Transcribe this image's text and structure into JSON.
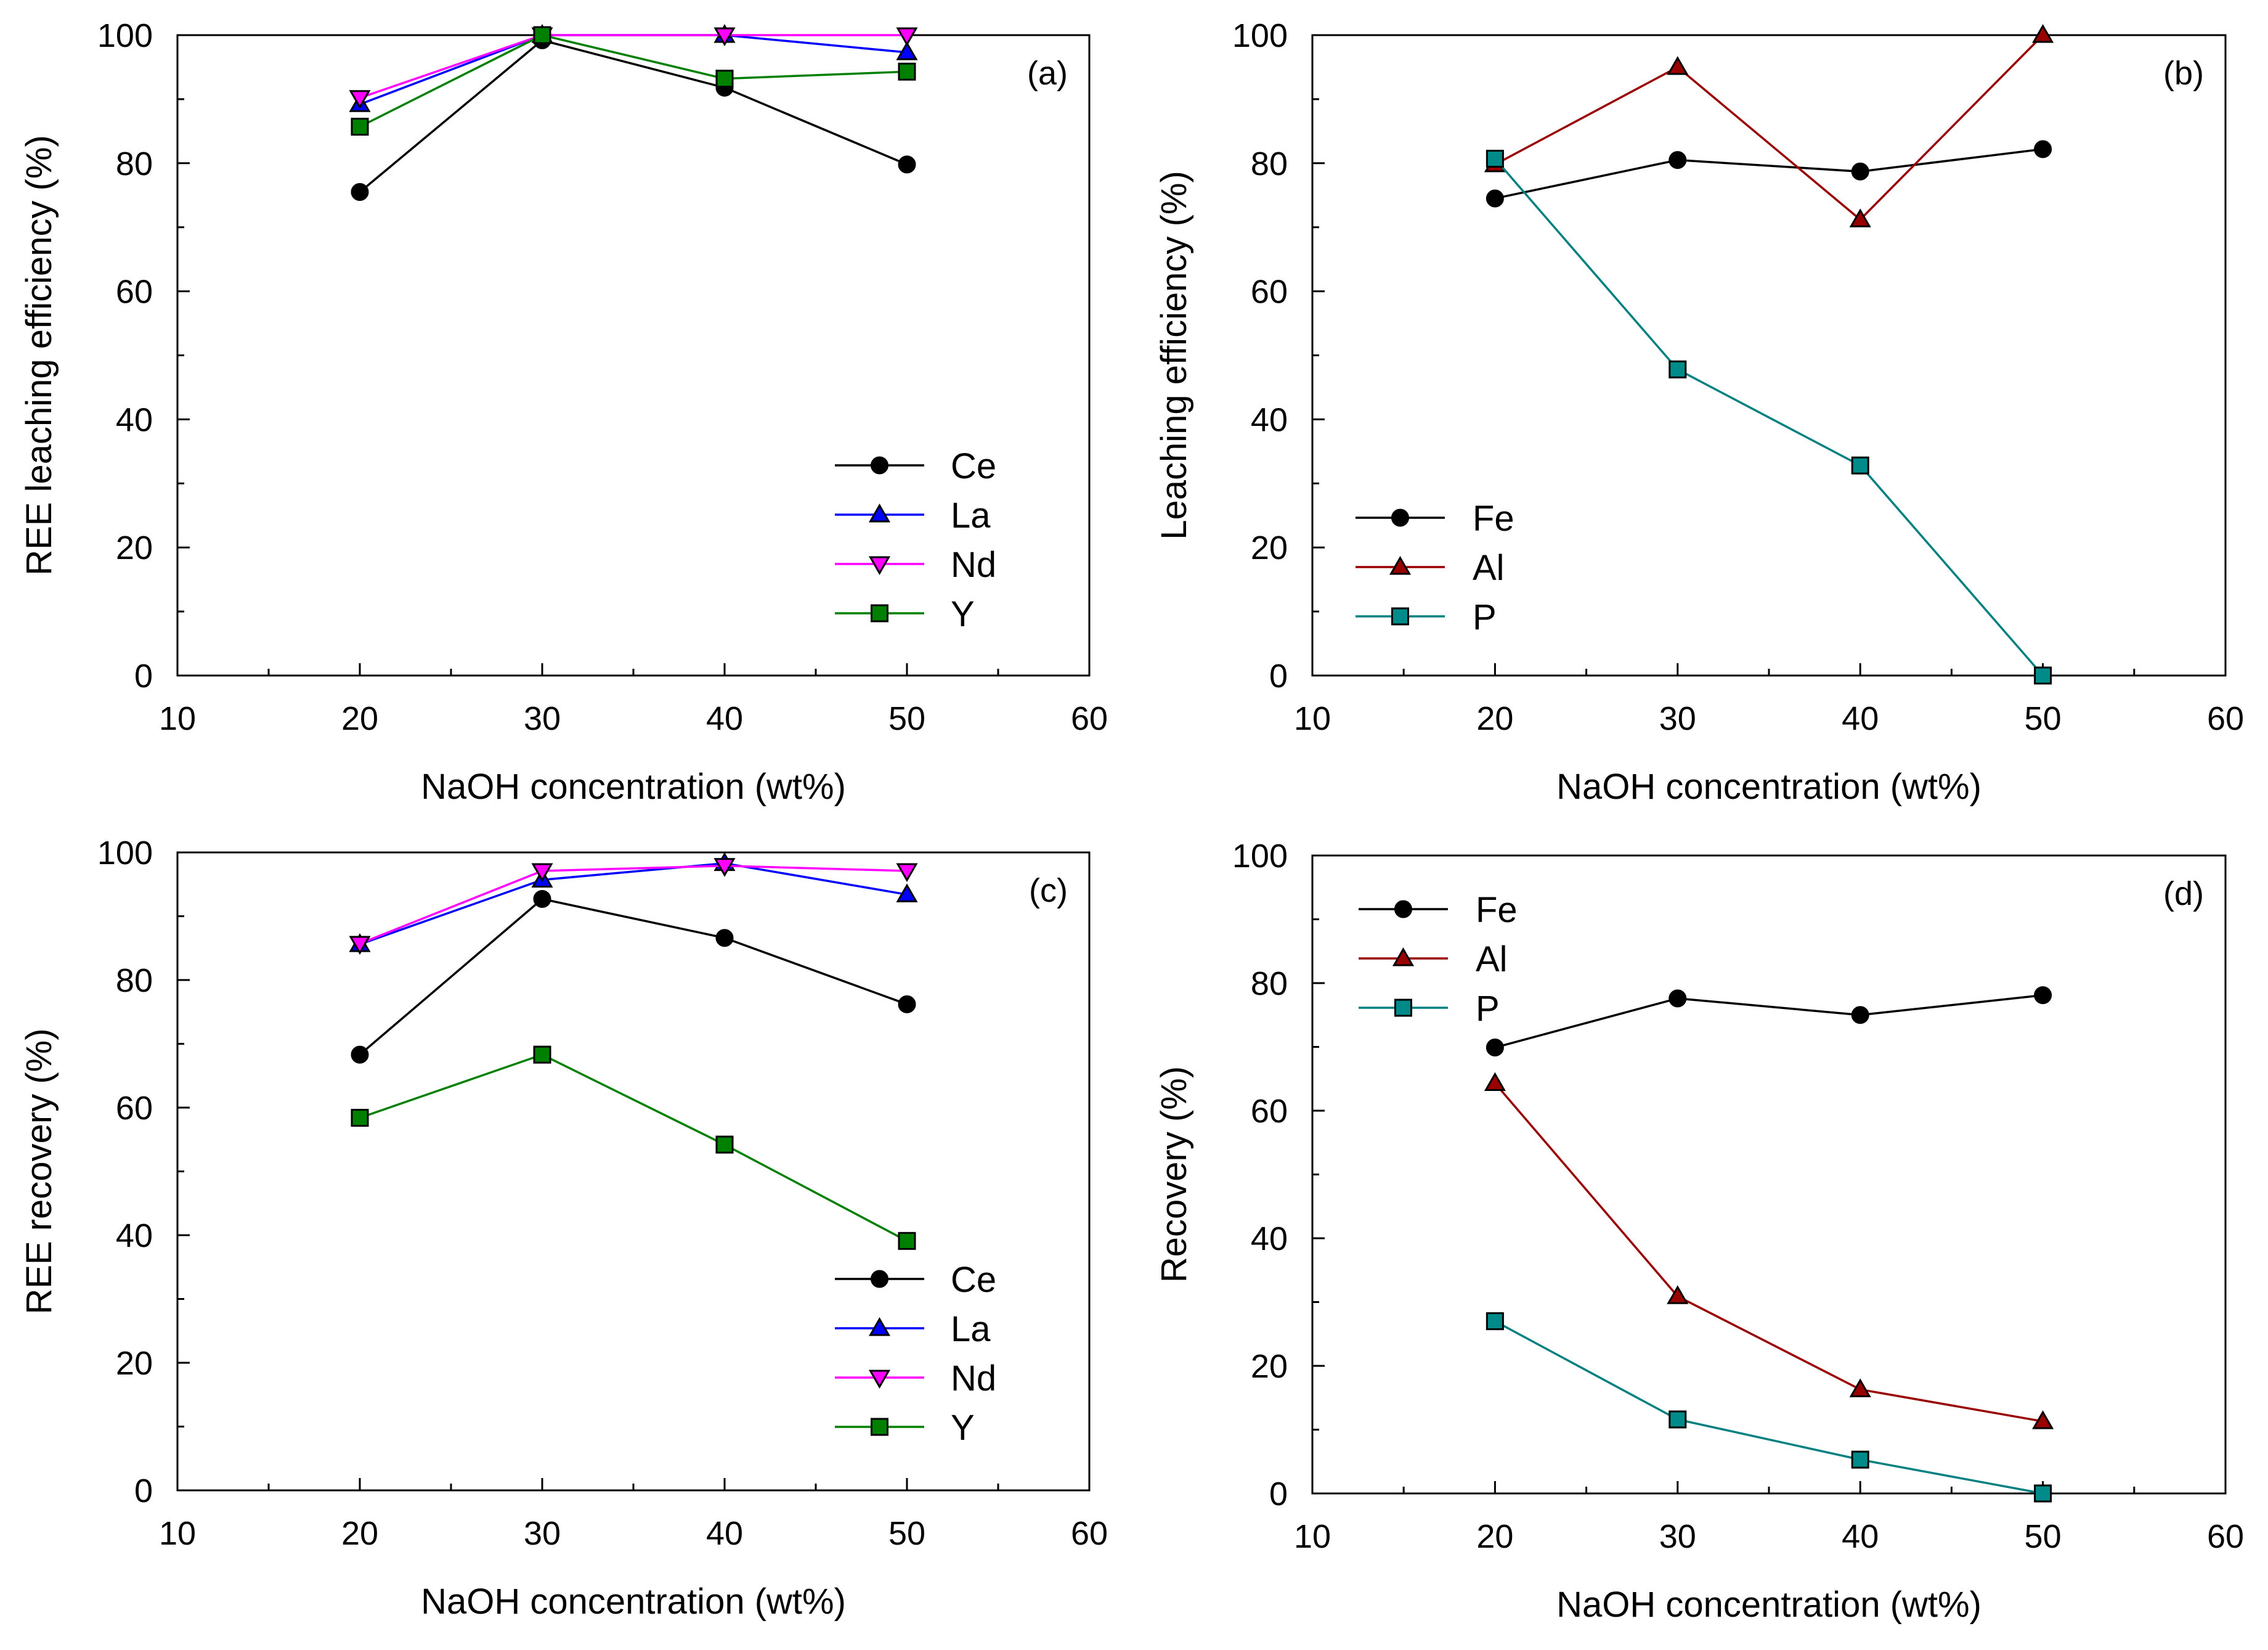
{
  "colors": {
    "Ce": "#000000",
    "La": "#0000ff",
    "Nd": "#ff00ff",
    "Y": "#008000",
    "Fe": "#000000",
    "Al": "#990000",
    "P": "#008080",
    "marker_Ce": "#000000",
    "marker_La": "#0000ff",
    "marker_Nd": "#ff00ff",
    "marker_Y": "#008000",
    "marker_Fe": "#000000",
    "marker_Al": "#990000",
    "marker_P": "#008b8b"
  },
  "chart_data": [
    {
      "id": "a",
      "type": "line",
      "panel_label": "(a)",
      "xlabel": "NaOH concentration (wt%)",
      "ylabel": "REE leaching efficiency (%)",
      "xlim": [
        10,
        60
      ],
      "ylim": [
        0,
        100
      ],
      "xticks": [
        10,
        20,
        30,
        40,
        50,
        60
      ],
      "yticks": [
        0,
        20,
        40,
        60,
        80,
        100
      ],
      "legend_position": "bottom-right",
      "x": [
        20,
        30,
        40,
        50
      ],
      "series": [
        {
          "name": "Ce",
          "marker": "circle",
          "values": [
            75.5,
            99.2,
            91.8,
            79.8
          ]
        },
        {
          "name": "La",
          "marker": "triangle-up",
          "values": [
            89.2,
            100,
            100,
            97.3
          ]
        },
        {
          "name": "Nd",
          "marker": "triangle-down",
          "values": [
            90.2,
            100,
            100,
            100
          ]
        },
        {
          "name": "Y",
          "marker": "square",
          "values": [
            85.7,
            100,
            93.2,
            94.3
          ]
        }
      ]
    },
    {
      "id": "b",
      "type": "line",
      "panel_label": "(b)",
      "xlabel": "NaOH concentration (wt%)",
      "ylabel": "Leaching efficiency (%)",
      "xlim": [
        10,
        60
      ],
      "ylim": [
        0,
        100
      ],
      "xticks": [
        10,
        20,
        30,
        40,
        50,
        60
      ],
      "yticks": [
        0,
        20,
        40,
        60,
        80,
        100
      ],
      "legend_position": "bottom-left",
      "x": [
        20,
        30,
        40,
        50
      ],
      "series": [
        {
          "name": "Fe",
          "marker": "circle",
          "values": [
            74.5,
            80.5,
            78.7,
            82.2
          ]
        },
        {
          "name": "Al",
          "marker": "triangle-up",
          "values": [
            79.8,
            95,
            71.2,
            100
          ]
        },
        {
          "name": "P",
          "marker": "square",
          "values": [
            80.7,
            47.8,
            32.8,
            0
          ]
        }
      ]
    },
    {
      "id": "c",
      "type": "line",
      "panel_label": "(c)",
      "xlabel": "NaOH concentration (wt%)",
      "ylabel": "REE recovery (%)",
      "xlim": [
        10,
        60
      ],
      "ylim": [
        0,
        100
      ],
      "xticks": [
        10,
        20,
        30,
        40,
        50,
        60
      ],
      "yticks": [
        0,
        20,
        40,
        60,
        80,
        100
      ],
      "legend_position": "bottom-right",
      "x": [
        20,
        30,
        40,
        50
      ],
      "series": [
        {
          "name": "Ce",
          "marker": "circle",
          "values": [
            68.3,
            92.7,
            86.6,
            76.2
          ]
        },
        {
          "name": "La",
          "marker": "triangle-up",
          "values": [
            85.6,
            95.7,
            98.3,
            93.4
          ]
        },
        {
          "name": "Nd",
          "marker": "triangle-down",
          "values": [
            85.7,
            97.1,
            97.9,
            97.1
          ]
        },
        {
          "name": "Y",
          "marker": "square",
          "values": [
            58.4,
            68.3,
            54.2,
            39.1
          ]
        }
      ]
    },
    {
      "id": "d",
      "type": "line",
      "panel_label": "(d)",
      "xlabel": "NaOH concentration (wt%)",
      "ylabel": "Recovery (%)",
      "xlim": [
        10,
        60
      ],
      "ylim": [
        0,
        100
      ],
      "xticks": [
        10,
        20,
        30,
        40,
        50,
        60
      ],
      "yticks": [
        0,
        20,
        40,
        60,
        80,
        100
      ],
      "legend_position": "top-left",
      "x": [
        20,
        30,
        40,
        50
      ],
      "series": [
        {
          "name": "Fe",
          "marker": "circle",
          "values": [
            69.9,
            77.6,
            75.0,
            78.1
          ]
        },
        {
          "name": "Al",
          "marker": "triangle-up",
          "values": [
            64.3,
            30.9,
            16.3,
            11.3
          ]
        },
        {
          "name": "P",
          "marker": "square",
          "values": [
            27.0,
            11.6,
            5.3,
            0
          ]
        }
      ]
    }
  ]
}
